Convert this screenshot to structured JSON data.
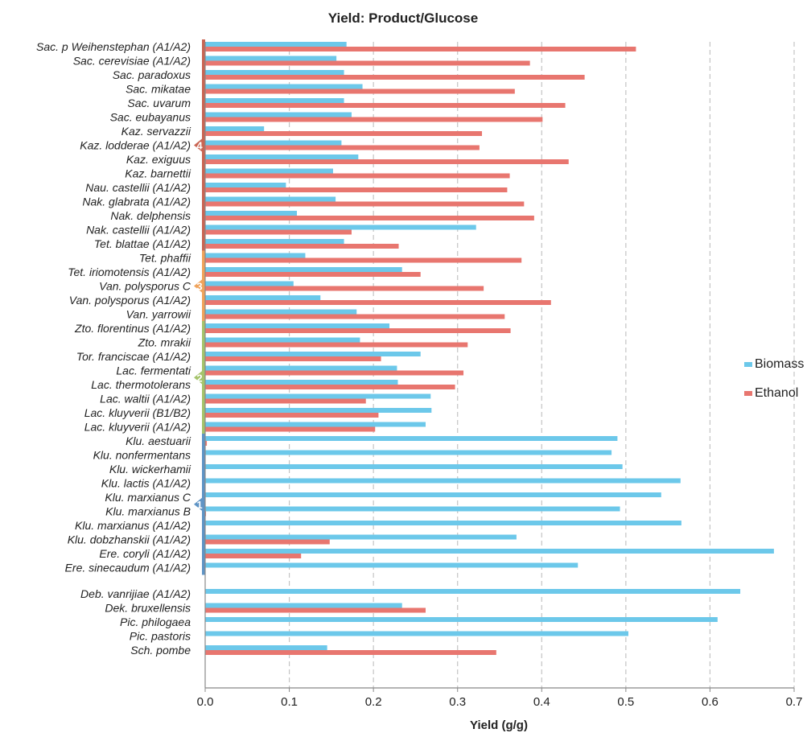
{
  "chart_data": {
    "type": "bar",
    "orientation": "horizontal",
    "title": "Yield: Product/Glucose",
    "xlabel": "Yield (g/g)",
    "ylabel": "",
    "xlim": [
      0,
      0.7
    ],
    "xticks": [
      "0.0",
      "0.1",
      "0.2",
      "0.3",
      "0.4",
      "0.5",
      "0.6",
      "0.7"
    ],
    "grid": "vertical dashed",
    "legend_position": "right",
    "categories": [
      "Sac. p Weihenstephan (A1/A2)",
      "Sac. cerevisiae (A1/A2)",
      "Sac. paradoxus",
      "Sac. mikatae",
      "Sac. uvarum",
      "Sac. eubayanus",
      "Kaz. servazzii",
      "Kaz. lodderae (A1/A2)",
      "Kaz. exiguus",
      "Kaz. barnettii",
      "Nau. castellii (A1/A2)",
      "Nak. glabrata (A1/A2)",
      "Nak. delphensis",
      "Nak. castellii (A1/A2)",
      "Tet. blattae (A1/A2)",
      "Tet. phaffii",
      "Tet. iriomotensis (A1/A2)",
      "Van. polysporus C",
      "Van. polysporus (A1/A2)",
      "Van. yarrowii",
      "Zto. florentinus (A1/A2)",
      "Zto. mrakii",
      "Tor. franciscae (A1/A2)",
      "Lac. fermentati",
      "Lac. thermotolerans",
      "Lac. waltii (A1/A2)",
      "Lac. kluyverii (B1/B2)",
      "Lac. kluyverii (A1/A2)",
      "Klu. aestuarii",
      "Klu. nonfermentans",
      "Klu. wickerhamii",
      "Klu. lactis (A1/A2)",
      "Klu. marxianus C",
      "Klu. marxianus B",
      "Klu. marxianus (A1/A2)",
      "Klu. dobzhanskii (A1/A2)",
      "Ere. coryli (A1/A2)",
      "Ere. sinecaudum (A1/A2)",
      "Deb. vanrijiae (A1/A2)",
      "Dek. bruxellensis",
      "Pic. philogaea",
      "Pic. pastoris",
      "Sch. pombe"
    ],
    "series": [
      {
        "name": "Biomass",
        "color": "#6cc8ea",
        "values": [
          0.168,
          0.156,
          0.165,
          0.187,
          0.165,
          0.174,
          0.07,
          0.162,
          0.182,
          0.152,
          0.096,
          0.155,
          0.109,
          0.322,
          0.165,
          0.119,
          0.234,
          0.105,
          0.137,
          0.18,
          0.219,
          0.184,
          0.256,
          0.228,
          0.229,
          0.268,
          0.269,
          0.262,
          0.49,
          0.483,
          0.496,
          0.565,
          0.542,
          0.493,
          0.566,
          0.37,
          0.676,
          0.443,
          0.636,
          0.234,
          0.609,
          0.503,
          0.145
        ]
      },
      {
        "name": "Ethanol",
        "color": "#e8766f",
        "values": [
          0.512,
          0.386,
          0.451,
          0.368,
          0.428,
          0.401,
          0.329,
          0.326,
          0.432,
          0.362,
          0.359,
          0.379,
          0.391,
          0.174,
          0.23,
          0.376,
          0.256,
          0.331,
          0.411,
          0.356,
          0.363,
          0.312,
          0.209,
          0.307,
          0.297,
          0.191,
          0.206,
          0.202,
          0.002,
          0.0,
          0.0,
          0.0,
          0.0,
          0.001,
          0.0,
          0.148,
          0.114,
          0.0,
          0.0,
          0.262,
          0.0,
          0.0,
          0.346
        ]
      }
    ],
    "groups": [
      {
        "label": "4",
        "color": "#c96553"
      },
      {
        "label": "3",
        "color": "#f0a35b"
      },
      {
        "label": "2",
        "color": "#a5c46b"
      },
      {
        "label": "1",
        "color": "#5f94c5"
      }
    ]
  }
}
